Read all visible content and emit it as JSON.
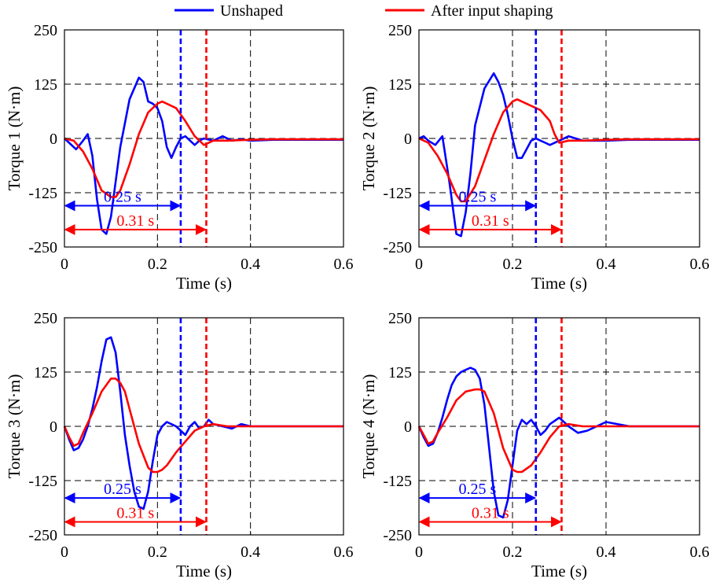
{
  "legend": {
    "items": [
      {
        "label": "Unshaped",
        "color": "#0000ff"
      },
      {
        "label": "After input shaping",
        "color": "#ff0000"
      }
    ]
  },
  "chart_data": [
    {
      "type": "line",
      "ylabel": "Torque 1 (N·m)",
      "xlabel": "Time (s)",
      "xlim": [
        0,
        0.6
      ],
      "ylim": [
        -250,
        250
      ],
      "xticks": [
        0,
        0.2,
        0.4,
        0.6
      ],
      "xtick_labels": [
        "0",
        "0.2",
        "0.4",
        "0.6"
      ],
      "yticks": [
        -250,
        -125,
        0,
        125,
        250
      ],
      "ytick_labels": [
        "-250",
        "-125",
        "0",
        "125",
        "250"
      ],
      "grid": "dashed",
      "series": [
        {
          "name": "Unshaped",
          "color": "#0000ff",
          "x": [
            0,
            0.01,
            0.025,
            0.04,
            0.05,
            0.06,
            0.07,
            0.08,
            0.09,
            0.1,
            0.12,
            0.14,
            0.16,
            0.17,
            0.18,
            0.19,
            0.2,
            0.21,
            0.22,
            0.23,
            0.24,
            0.25,
            0.26,
            0.27,
            0.28,
            0.29,
            0.3,
            0.32,
            0.34,
            0.36,
            0.38,
            0.4,
            0.45,
            0.5,
            0.55,
            0.6
          ],
          "y": [
            0,
            -10,
            -25,
            -5,
            10,
            -40,
            -140,
            -210,
            -220,
            -180,
            -20,
            90,
            140,
            130,
            85,
            80,
            70,
            40,
            -20,
            -45,
            -20,
            0,
            5,
            -5,
            -15,
            -5,
            0,
            -5,
            5,
            -5,
            -2,
            -5,
            -3,
            -3,
            -3,
            -3
          ]
        },
        {
          "name": "After input shaping",
          "color": "#ff0000",
          "x": [
            0,
            0.02,
            0.04,
            0.06,
            0.08,
            0.1,
            0.11,
            0.12,
            0.14,
            0.16,
            0.18,
            0.2,
            0.21,
            0.22,
            0.24,
            0.26,
            0.28,
            0.3,
            0.32,
            0.35,
            0.4,
            0.45,
            0.5,
            0.55,
            0.6
          ],
          "y": [
            0,
            -5,
            -30,
            -70,
            -120,
            -135,
            -135,
            -120,
            -60,
            10,
            60,
            80,
            85,
            80,
            70,
            40,
            5,
            -15,
            -5,
            -5,
            -3,
            -2,
            -2,
            -2,
            -2
          ]
        }
      ],
      "annotations": [
        {
          "text": "0.25 s",
          "color": "#0000ff",
          "x0": 0,
          "x1": 0.25,
          "y": -155
        },
        {
          "text": "0.31 s",
          "color": "#ff0000",
          "x0": 0,
          "x1": 0.305,
          "y": -210
        }
      ],
      "vlines": [
        {
          "x": 0.25,
          "color": "#0000ff"
        },
        {
          "x": 0.305,
          "color": "#ff0000"
        }
      ]
    },
    {
      "type": "line",
      "ylabel": "Torque 2 (N·m)",
      "xlabel": "Time (s)",
      "xlim": [
        0,
        0.6
      ],
      "ylim": [
        -250,
        250
      ],
      "xticks": [
        0,
        0.2,
        0.4,
        0.6
      ],
      "xtick_labels": [
        "0",
        "0.2",
        "0.4",
        "0.6"
      ],
      "yticks": [
        -250,
        -125,
        0,
        125,
        250
      ],
      "ytick_labels": [
        "-250",
        "-125",
        "0",
        "125",
        "250"
      ],
      "grid": "dashed",
      "series": [
        {
          "name": "Unshaped",
          "color": "#0000ff",
          "x": [
            0,
            0.01,
            0.02,
            0.035,
            0.05,
            0.065,
            0.08,
            0.09,
            0.1,
            0.11,
            0.12,
            0.14,
            0.16,
            0.17,
            0.18,
            0.19,
            0.2,
            0.21,
            0.22,
            0.23,
            0.24,
            0.25,
            0.26,
            0.27,
            0.28,
            0.3,
            0.32,
            0.35,
            0.38,
            0.4,
            0.45,
            0.5,
            0.55,
            0.6
          ],
          "y": [
            0,
            5,
            -5,
            -15,
            5,
            -100,
            -220,
            -225,
            -170,
            -80,
            30,
            115,
            150,
            130,
            100,
            55,
            0,
            -45,
            -45,
            -25,
            -5,
            0,
            -5,
            -10,
            -15,
            -5,
            5,
            -5,
            -5,
            -5,
            -3,
            -3,
            -3,
            -3
          ]
        },
        {
          "name": "After input shaping",
          "color": "#ff0000",
          "x": [
            0,
            0.02,
            0.04,
            0.06,
            0.08,
            0.09,
            0.1,
            0.12,
            0.14,
            0.16,
            0.18,
            0.2,
            0.21,
            0.22,
            0.24,
            0.26,
            0.28,
            0.29,
            0.3,
            0.32,
            0.35,
            0.4,
            0.45,
            0.5,
            0.55,
            0.6
          ],
          "y": [
            0,
            -10,
            -40,
            -80,
            -130,
            -145,
            -145,
            -110,
            -50,
            10,
            60,
            85,
            90,
            85,
            75,
            65,
            40,
            10,
            -10,
            -5,
            -5,
            -3,
            -2,
            -2,
            -2,
            -2
          ]
        }
      ],
      "annotations": [
        {
          "text": "0.25 s",
          "color": "#0000ff",
          "x0": 0,
          "x1": 0.25,
          "y": -155
        },
        {
          "text": "0.31 s",
          "color": "#ff0000",
          "x0": 0,
          "x1": 0.305,
          "y": -210
        }
      ],
      "vlines": [
        {
          "x": 0.25,
          "color": "#0000ff"
        },
        {
          "x": 0.305,
          "color": "#ff0000"
        }
      ]
    },
    {
      "type": "line",
      "ylabel": "Torque 3 (N·m)",
      "xlabel": "Time (s)",
      "xlim": [
        0,
        0.6
      ],
      "ylim": [
        -250,
        250
      ],
      "xticks": [
        0,
        0.2,
        0.4,
        0.6
      ],
      "xtick_labels": [
        "0",
        "0.2",
        "0.4",
        "0.6"
      ],
      "yticks": [
        -250,
        -125,
        0,
        125,
        250
      ],
      "ytick_labels": [
        "-250",
        "-125",
        "0",
        "125",
        "250"
      ],
      "grid": "dashed",
      "series": [
        {
          "name": "Unshaped",
          "color": "#0000ff",
          "x": [
            0,
            0.01,
            0.02,
            0.03,
            0.04,
            0.05,
            0.06,
            0.07,
            0.08,
            0.09,
            0.1,
            0.11,
            0.12,
            0.13,
            0.14,
            0.15,
            0.16,
            0.17,
            0.18,
            0.19,
            0.2,
            0.21,
            0.22,
            0.23,
            0.24,
            0.25,
            0.26,
            0.27,
            0.28,
            0.29,
            0.3,
            0.31,
            0.32,
            0.34,
            0.36,
            0.38,
            0.4,
            0.45,
            0.5,
            0.55,
            0.6
          ],
          "y": [
            0,
            -30,
            -55,
            -50,
            -30,
            0,
            40,
            90,
            150,
            200,
            205,
            170,
            80,
            -20,
            -90,
            -150,
            -185,
            -190,
            -150,
            -80,
            -20,
            0,
            10,
            5,
            0,
            -10,
            -20,
            0,
            10,
            -5,
            0,
            15,
            5,
            0,
            -5,
            5,
            0,
            0,
            0,
            0,
            0
          ]
        },
        {
          "name": "After input shaping",
          "color": "#ff0000",
          "x": [
            0,
            0.01,
            0.02,
            0.03,
            0.04,
            0.06,
            0.08,
            0.1,
            0.11,
            0.12,
            0.13,
            0.14,
            0.16,
            0.18,
            0.19,
            0.2,
            0.21,
            0.22,
            0.24,
            0.26,
            0.28,
            0.3,
            0.32,
            0.35,
            0.4,
            0.45,
            0.5,
            0.55,
            0.6
          ],
          "y": [
            0,
            -25,
            -45,
            -40,
            -15,
            30,
            80,
            110,
            110,
            100,
            80,
            40,
            -40,
            -95,
            -105,
            -105,
            -100,
            -90,
            -60,
            -35,
            -10,
            0,
            5,
            0,
            0,
            0,
            0,
            0,
            0
          ]
        }
      ],
      "annotations": [
        {
          "text": "0.25 s",
          "color": "#0000ff",
          "x0": 0,
          "x1": 0.25,
          "y": -165
        },
        {
          "text": "0.31 s",
          "color": "#ff0000",
          "x0": 0,
          "x1": 0.305,
          "y": -220
        }
      ],
      "vlines": [
        {
          "x": 0.25,
          "color": "#0000ff"
        },
        {
          "x": 0.305,
          "color": "#ff0000"
        }
      ]
    },
    {
      "type": "line",
      "ylabel": "Torque 4 (N·m)",
      "xlabel": "Time (s)",
      "xlim": [
        0,
        0.6
      ],
      "ylim": [
        -250,
        250
      ],
      "xticks": [
        0,
        0.2,
        0.4,
        0.6
      ],
      "xtick_labels": [
        "0",
        "0.2",
        "0.4",
        "0.6"
      ],
      "yticks": [
        -250,
        -125,
        0,
        125,
        250
      ],
      "ytick_labels": [
        "-250",
        "-125",
        "0",
        "125",
        "250"
      ],
      "grid": "dashed",
      "series": [
        {
          "name": "Unshaped",
          "color": "#0000ff",
          "x": [
            0,
            0.01,
            0.02,
            0.03,
            0.04,
            0.05,
            0.06,
            0.07,
            0.08,
            0.09,
            0.1,
            0.11,
            0.12,
            0.13,
            0.14,
            0.15,
            0.16,
            0.17,
            0.18,
            0.19,
            0.2,
            0.21,
            0.22,
            0.23,
            0.24,
            0.25,
            0.26,
            0.27,
            0.28,
            0.3,
            0.32,
            0.34,
            0.36,
            0.38,
            0.4,
            0.45,
            0.5,
            0.55,
            0.6
          ],
          "y": [
            0,
            -25,
            -45,
            -40,
            -15,
            20,
            60,
            95,
            115,
            125,
            130,
            135,
            130,
            110,
            50,
            -50,
            -150,
            -205,
            -210,
            -170,
            -90,
            -10,
            15,
            5,
            15,
            0,
            -20,
            -10,
            5,
            20,
            0,
            -15,
            -10,
            0,
            10,
            0,
            0,
            0,
            0
          ]
        },
        {
          "name": "After input shaping",
          "color": "#ff0000",
          "x": [
            0,
            0.01,
            0.02,
            0.03,
            0.04,
            0.06,
            0.08,
            0.1,
            0.12,
            0.13,
            0.14,
            0.16,
            0.18,
            0.2,
            0.21,
            0.22,
            0.24,
            0.26,
            0.28,
            0.3,
            0.32,
            0.35,
            0.4,
            0.45,
            0.5,
            0.55,
            0.6
          ],
          "y": [
            0,
            -20,
            -40,
            -35,
            -15,
            20,
            60,
            80,
            85,
            85,
            80,
            30,
            -50,
            -100,
            -105,
            -105,
            -90,
            -60,
            -25,
            0,
            5,
            0,
            0,
            0,
            0,
            0,
            0
          ]
        }
      ],
      "annotations": [
        {
          "text": "0.25 s",
          "color": "#0000ff",
          "x0": 0,
          "x1": 0.25,
          "y": -165
        },
        {
          "text": "0.31 s",
          "color": "#ff0000",
          "x0": 0,
          "x1": 0.305,
          "y": -220
        }
      ],
      "vlines": [
        {
          "x": 0.25,
          "color": "#0000ff"
        },
        {
          "x": 0.305,
          "color": "#ff0000"
        }
      ]
    }
  ]
}
